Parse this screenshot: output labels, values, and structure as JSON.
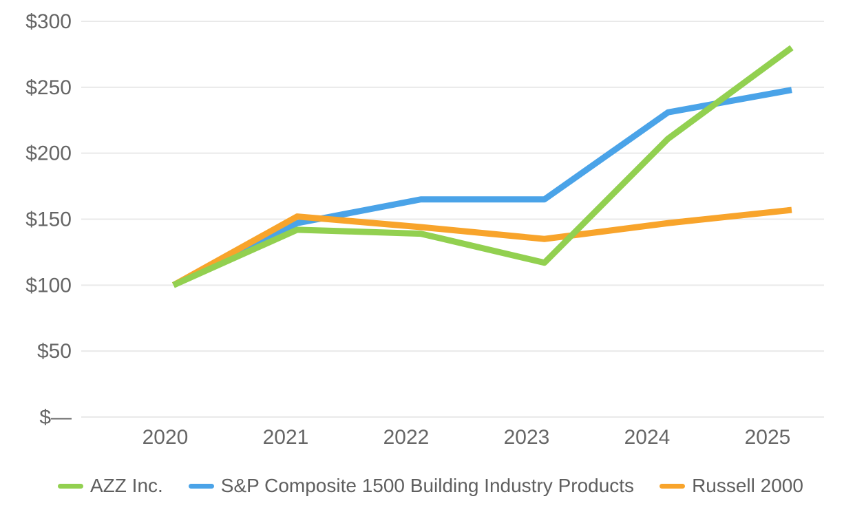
{
  "chart_data": {
    "type": "line",
    "title": "",
    "xlabel": "",
    "ylabel": "",
    "x": [
      2020,
      2021,
      2022,
      2023,
      2024,
      2025
    ],
    "x_axis": {
      "tick_labels": [
        "2020",
        "2021",
        "2022",
        "2023",
        "2024",
        "2025"
      ]
    },
    "y_axis": {
      "ticks": [
        0,
        50,
        100,
        150,
        200,
        250,
        300
      ],
      "tick_labels": [
        "$—",
        "$50",
        "$100",
        "$150",
        "$200",
        "$250",
        "$300"
      ],
      "range": [
        0,
        300
      ]
    },
    "grid": true,
    "legend_position": "bottom",
    "series": [
      {
        "name": "AZZ Inc.",
        "color": "#92D050",
        "values": [
          100,
          142,
          139,
          117,
          211,
          280
        ]
      },
      {
        "name": "S&P Composite 1500 Building Industry Products",
        "color": "#4AA3E8",
        "values": [
          100,
          147,
          165,
          165,
          231,
          248
        ]
      },
      {
        "name": "Russell 2000",
        "color": "#F8A42B",
        "values": [
          100,
          152,
          144,
          135,
          147,
          157
        ]
      }
    ]
  }
}
